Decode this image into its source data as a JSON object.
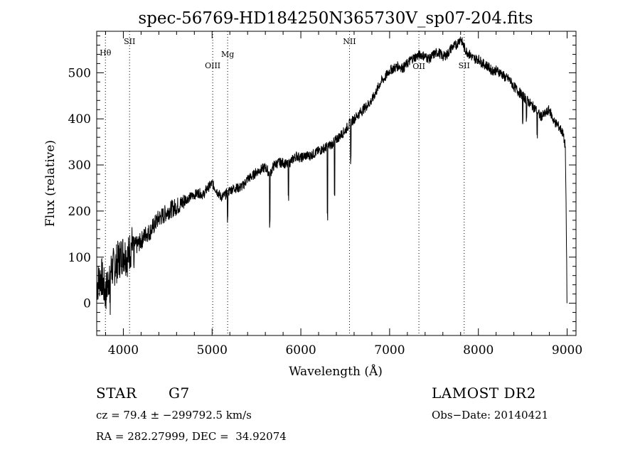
{
  "chart_data": {
    "type": "line",
    "title": "spec-56769-HD184250N365730V_sp07-204.fits",
    "xlabel": "Wavelength (Å)",
    "ylabel": "Flux (relative)",
    "xlim": [
      3700,
      9100
    ],
    "ylim": [
      -70,
      590
    ],
    "xticks": [
      4000,
      5000,
      6000,
      7000,
      8000,
      9000
    ],
    "yticks": [
      0,
      100,
      200,
      300,
      400,
      500
    ],
    "grid": false,
    "lines": [
      {
        "label": "Hθ",
        "x": 3798
      },
      {
        "label": "SII",
        "x": 4070
      },
      {
        "label": "OIII",
        "x": 5007
      },
      {
        "label": "Mg",
        "x": 5175
      },
      {
        "label": "NII",
        "x": 6548
      },
      {
        "label": "OII",
        "x": 7330
      },
      {
        "label": "SII",
        "x": 7840
      }
    ],
    "series": [
      {
        "x": [
          3700,
          3750,
          3800,
          3850,
          3900,
          3950,
          4000,
          4050,
          4100,
          4150,
          4200,
          4250,
          4300,
          4350,
          4400,
          4450,
          4500,
          4550,
          4600,
          4650,
          4700,
          4750,
          4800,
          4850,
          4900,
          4950,
          5000,
          5050,
          5100,
          5150,
          5200,
          5250,
          5300,
          5350,
          5400,
          5450,
          5500,
          5550,
          5600,
          5650,
          5700,
          5750,
          5800,
          5850,
          5900,
          5950,
          6000,
          6050,
          6100,
          6150,
          6200,
          6250,
          6300,
          6350,
          6400,
          6450,
          6500,
          6550,
          6600,
          6650,
          6700,
          6750,
          6800,
          6850,
          6900,
          6950,
          7000,
          7050,
          7100,
          7150,
          7200,
          7250,
          7300,
          7350,
          7400,
          7450,
          7500,
          7550,
          7600,
          7650,
          7700,
          7750,
          7800,
          7850,
          7900,
          7950,
          8000,
          8050,
          8100,
          8150,
          8200,
          8250,
          8300,
          8350,
          8400,
          8450,
          8500,
          8550,
          8600,
          8650,
          8700,
          8750,
          8800,
          8850,
          8900,
          8950,
          8980,
          9000
        ],
        "y": [
          40,
          60,
          20,
          70,
          80,
          95,
          110,
          100,
          130,
          125,
          135,
          150,
          155,
          170,
          185,
          190,
          200,
          205,
          210,
          215,
          225,
          230,
          235,
          240,
          235,
          250,
          260,
          245,
          230,
          235,
          245,
          250,
          250,
          255,
          270,
          275,
          285,
          290,
          295,
          280,
          300,
          305,
          305,
          300,
          310,
          320,
          315,
          320,
          320,
          325,
          330,
          335,
          340,
          345,
          355,
          365,
          375,
          390,
          400,
          410,
          420,
          430,
          440,
          460,
          480,
          490,
          505,
          510,
          515,
          510,
          520,
          530,
          535,
          540,
          535,
          530,
          540,
          545,
          535,
          540,
          555,
          560,
          575,
          550,
          540,
          530,
          530,
          520,
          515,
          505,
          505,
          500,
          490,
          485,
          470,
          460,
          450,
          440,
          430,
          420,
          405,
          410,
          420,
          395,
          385,
          370,
          340,
          0
        ]
      }
    ]
  },
  "info": {
    "object_class": "STAR",
    "subclass": "G7",
    "survey": "LAMOST DR2",
    "cz": "cz = 79.4 ± −299792.5 km/s",
    "obs_date": "Obs−Date: 20140421",
    "radec": "RA = 282.27999, DEC =  34.92074"
  }
}
